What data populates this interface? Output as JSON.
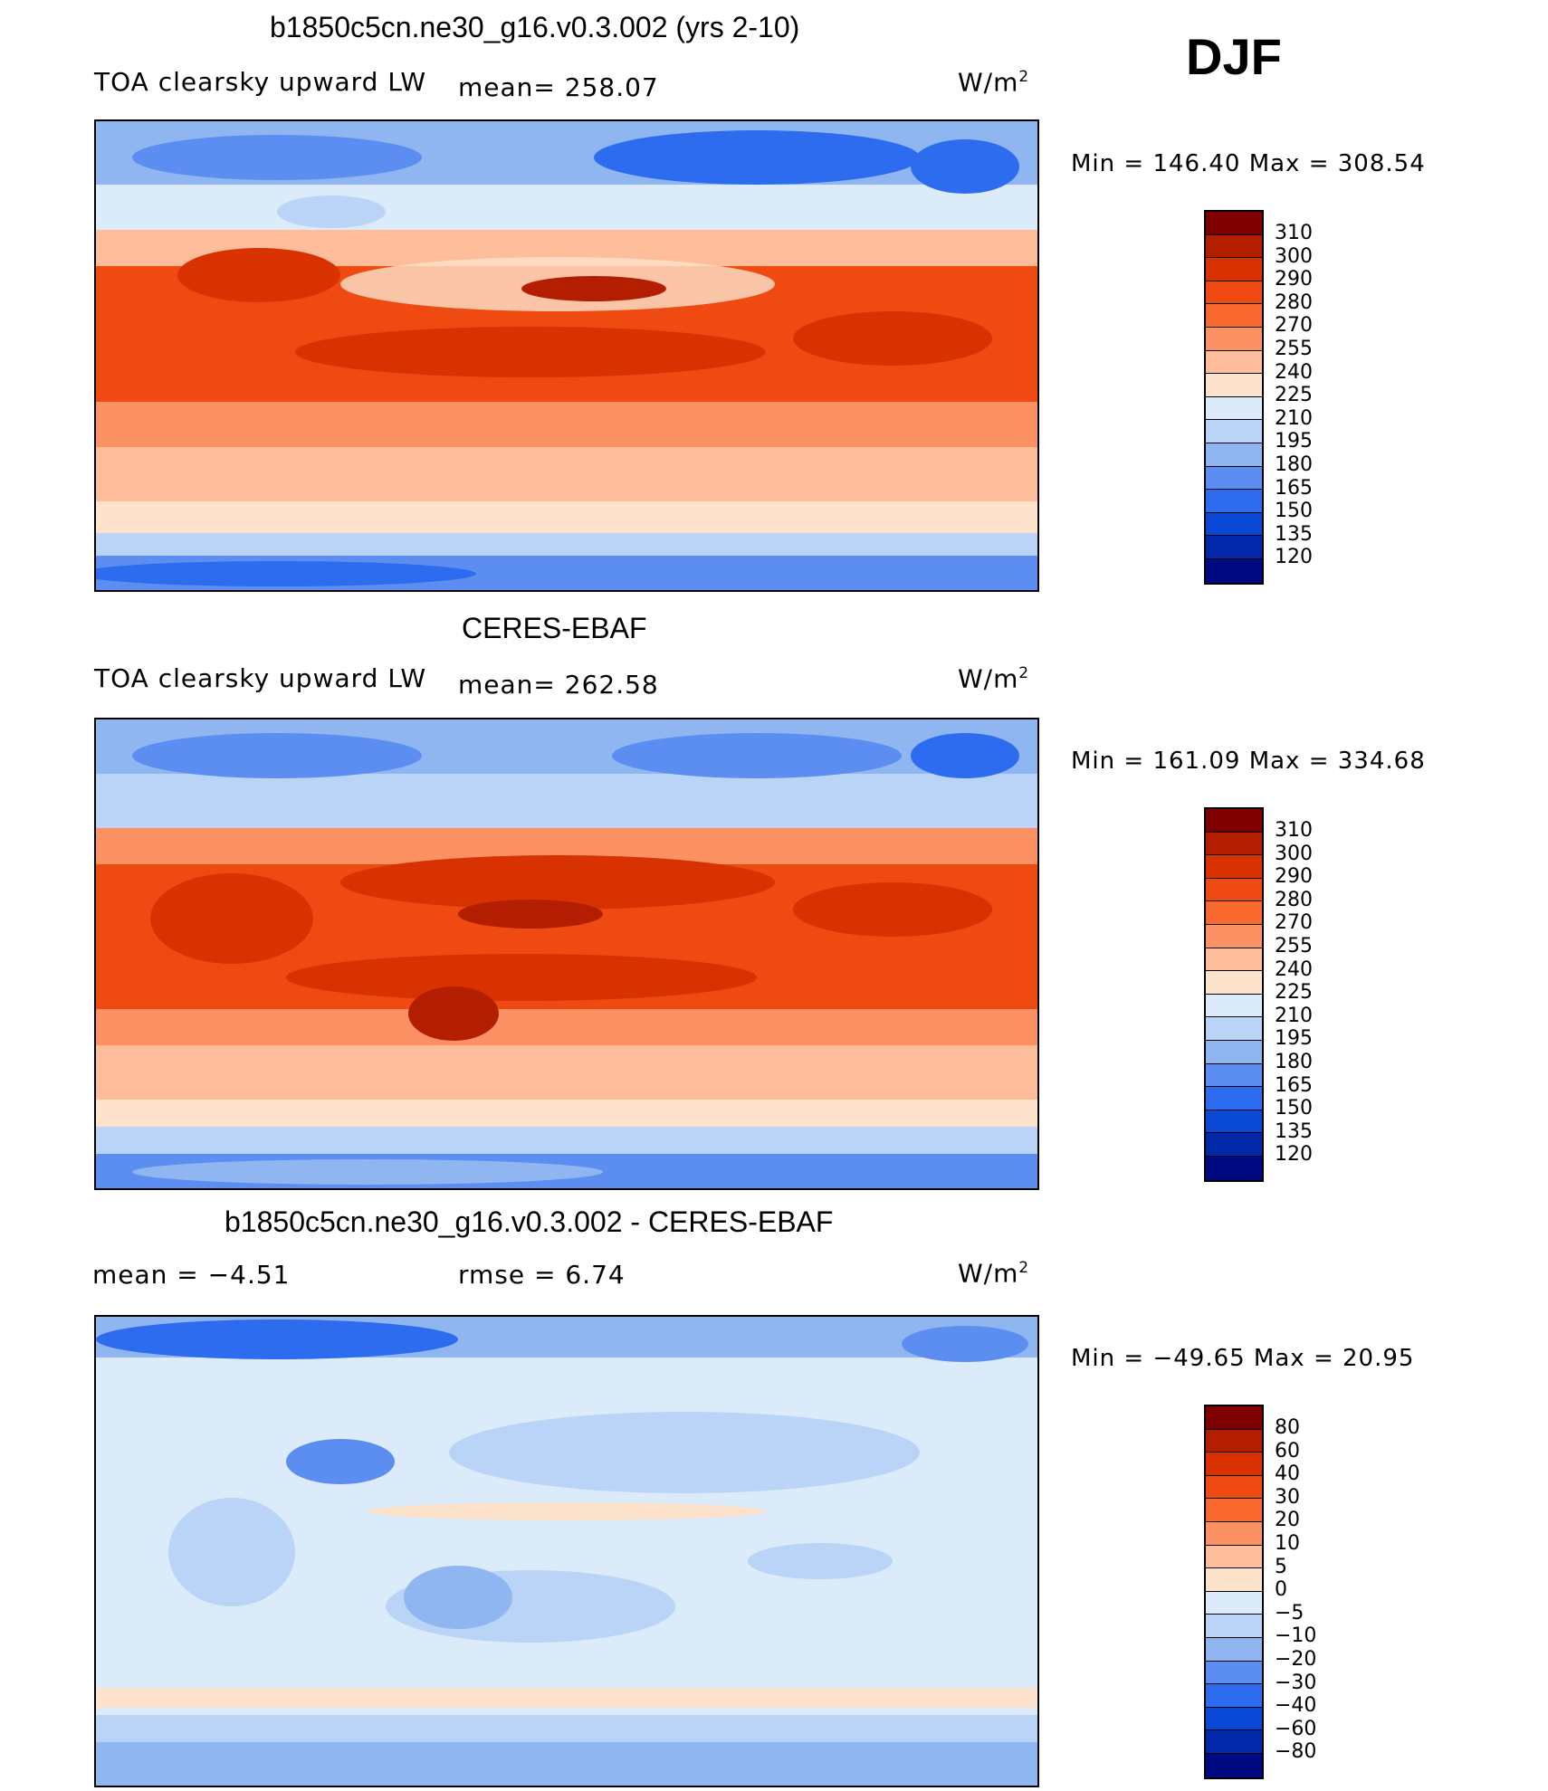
{
  "season": "DJF",
  "panels": [
    {
      "title": "b1850c5cn.ne30_g16.v0.3.002 (yrs 2-10)",
      "left_label": "TOA clearsky upward LW",
      "center_label": "mean=  258.07",
      "units": "W/m",
      "units_sup": "2",
      "minmax": "Min  =  146.40  Max  =  308.54",
      "colorbar": {
        "levels": [
          "310",
          "300",
          "290",
          "280",
          "270",
          "255",
          "240",
          "225",
          "210",
          "195",
          "180",
          "165",
          "150",
          "135",
          "120"
        ],
        "colors": [
          "#7f0000",
          "#b41e00",
          "#d83200",
          "#ee4a12",
          "#f9692e",
          "#fc9264",
          "#fdbc9a",
          "#fde2cc",
          "#dcebfa",
          "#b9d4f6",
          "#8fb6f1",
          "#5b8ef0",
          "#2d6bef",
          "#0a48d8",
          "#0028a8",
          "#000a80"
        ]
      }
    },
    {
      "title": "CERES-EBAF",
      "left_label": "TOA clearsky upward LW",
      "center_label": "mean=  262.58",
      "units": "W/m",
      "units_sup": "2",
      "minmax": "Min  =  161.09  Max  =  334.68",
      "colorbar": {
        "levels": [
          "310",
          "300",
          "290",
          "280",
          "270",
          "255",
          "240",
          "225",
          "210",
          "195",
          "180",
          "165",
          "150",
          "135",
          "120"
        ],
        "colors": [
          "#7f0000",
          "#b41e00",
          "#d83200",
          "#ee4a12",
          "#f9692e",
          "#fc9264",
          "#fdbc9a",
          "#fde2cc",
          "#dcebfa",
          "#b9d4f6",
          "#8fb6f1",
          "#5b8ef0",
          "#2d6bef",
          "#0a48d8",
          "#0028a8",
          "#000a80"
        ]
      }
    },
    {
      "title": "b1850c5cn.ne30_g16.v0.3.002 - CERES-EBAF",
      "left_label": "mean  =     −4.51",
      "center_label": "rmse  =     6.74",
      "units": "W/m",
      "units_sup": "2",
      "minmax": "Min  =  −49.65  Max  =    20.95",
      "colorbar": {
        "levels": [
          "80",
          "60",
          "40",
          "30",
          "20",
          "10",
          "5",
          "0",
          "−5",
          "−10",
          "−20",
          "−30",
          "−40",
          "−60",
          "−80"
        ],
        "colors": [
          "#7f0000",
          "#b41e00",
          "#d83200",
          "#ee4a12",
          "#f9692e",
          "#fc9264",
          "#fdbc9a",
          "#fde2cc",
          "#dcebfa",
          "#b9d4f6",
          "#8fb6f1",
          "#5b8ef0",
          "#2d6bef",
          "#0a48d8",
          "#0028a8",
          "#000a80"
        ]
      }
    }
  ]
}
